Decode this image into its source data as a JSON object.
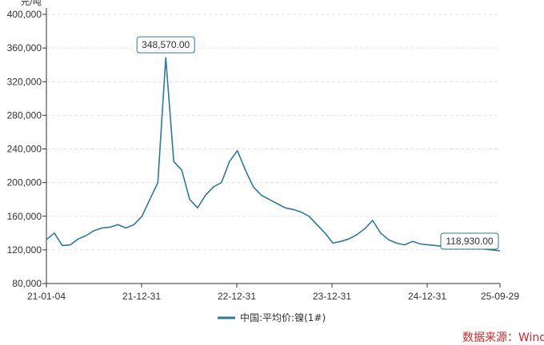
{
  "chart_data": {
    "type": "line",
    "ylabel": "元/吨",
    "y_ticks": [
      "80,000",
      "120,000",
      "160,000",
      "200,000",
      "240,000",
      "280,000",
      "320,000",
      "360,000",
      "400,000"
    ],
    "ylim": [
      80000,
      400000
    ],
    "x_ticks": [
      "21-01-04",
      "21-12-31",
      "22-12-31",
      "23-12-31",
      "24-12-31",
      "25-09-29"
    ],
    "grid": true,
    "legend_position": "bottom-center",
    "series": [
      {
        "name": "中国:平均价:镍(1#)",
        "color": "#2b7a9b",
        "x": [
          "2021-01",
          "2021-02",
          "2021-03",
          "2021-04",
          "2021-05",
          "2021-06",
          "2021-07",
          "2021-08",
          "2021-09",
          "2021-10",
          "2021-11",
          "2021-12",
          "2022-01",
          "2022-02",
          "2022-03",
          "2022-03b",
          "2022-04",
          "2022-05",
          "2022-06",
          "2022-07",
          "2022-08",
          "2022-09",
          "2022-10",
          "2022-11",
          "2022-12",
          "2023-01",
          "2023-02",
          "2023-03",
          "2023-04",
          "2023-05",
          "2023-06",
          "2023-07",
          "2023-08",
          "2023-09",
          "2023-10",
          "2023-11",
          "2023-12",
          "2024-01",
          "2024-02",
          "2024-03",
          "2024-04",
          "2024-05",
          "2024-06",
          "2024-07",
          "2024-08",
          "2024-09",
          "2024-10",
          "2024-11",
          "2024-12",
          "2025-01",
          "2025-02",
          "2025-03",
          "2025-04",
          "2025-05",
          "2025-06",
          "2025-07",
          "2025-08",
          "2025-09"
        ],
        "values": [
          132000,
          140000,
          125000,
          126000,
          133000,
          137000,
          143000,
          146000,
          147000,
          150000,
          146000,
          150000,
          160000,
          180000,
          200000,
          348570,
          225000,
          215000,
          180000,
          170000,
          185000,
          195000,
          200000,
          225000,
          238000,
          215000,
          195000,
          185000,
          180000,
          175000,
          170000,
          168000,
          165000,
          160000,
          150000,
          140000,
          128000,
          130000,
          133000,
          138000,
          145000,
          155000,
          140000,
          132000,
          128000,
          126000,
          130000,
          127000,
          126000,
          125000,
          124000,
          127000,
          124000,
          123000,
          122000,
          121000,
          120000,
          118930
        ]
      }
    ],
    "annotations": [
      {
        "label": "348,570.00",
        "x": "2022-03b",
        "y": 348570
      },
      {
        "label": "118,930.00",
        "x": "2025-09",
        "y": 118930
      }
    ]
  },
  "source_text": "数据来源：Wind"
}
